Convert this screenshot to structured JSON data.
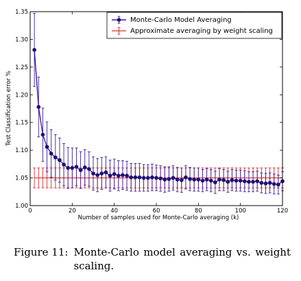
{
  "caption": {
    "prefix": "Figure 11:",
    "text": "Monte-Carlo model averaging vs. weight scaling."
  },
  "colors": {
    "mc_series": "#3a1d9e",
    "mc_marker": "#1b1464",
    "ws_series": "#d62e2e"
  },
  "chart_data": {
    "type": "line",
    "title": "",
    "xlabel": "Number of samples used for Monte-Carlo averaging (k)",
    "ylabel": "Test Classification error %",
    "xlim": [
      0,
      120
    ],
    "ylim": [
      1.0,
      1.35
    ],
    "xticks": [
      0,
      20,
      40,
      60,
      80,
      100,
      120
    ],
    "yticks": [
      1.0,
      1.05,
      1.1,
      1.15,
      1.2,
      1.25,
      1.3,
      1.35
    ],
    "grid": false,
    "legend_position": "top-right",
    "series": [
      {
        "name": "Monte-Carlo Model Averaging",
        "style": "line-with-markers-errorbars",
        "x": [
          2,
          4,
          6,
          8,
          10,
          12,
          14,
          16,
          18,
          20,
          22,
          24,
          26,
          28,
          30,
          32,
          34,
          36,
          38,
          40,
          42,
          44,
          46,
          48,
          50,
          52,
          54,
          56,
          58,
          60,
          62,
          64,
          66,
          68,
          70,
          72,
          74,
          76,
          78,
          80,
          82,
          84,
          86,
          88,
          90,
          92,
          94,
          96,
          98,
          100,
          102,
          104,
          106,
          108,
          110,
          112,
          114,
          116,
          118,
          120
        ],
        "y": [
          1.281,
          1.178,
          1.128,
          1.106,
          1.094,
          1.087,
          1.082,
          1.074,
          1.068,
          1.068,
          1.07,
          1.064,
          1.069,
          1.066,
          1.058,
          1.055,
          1.058,
          1.06,
          1.054,
          1.057,
          1.054,
          1.055,
          1.054,
          1.051,
          1.051,
          1.051,
          1.05,
          1.05,
          1.051,
          1.05,
          1.049,
          1.047,
          1.048,
          1.05,
          1.047,
          1.046,
          1.051,
          1.048,
          1.047,
          1.047,
          1.045,
          1.047,
          1.045,
          1.042,
          1.047,
          1.046,
          1.043,
          1.046,
          1.045,
          1.045,
          1.044,
          1.043,
          1.043,
          1.044,
          1.041,
          1.04,
          1.041,
          1.039,
          1.038,
          1.044
        ],
        "err": [
          0.066,
          0.054,
          0.048,
          0.045,
          0.043,
          0.041,
          0.04,
          0.038,
          0.037,
          0.036,
          0.034,
          0.033,
          0.032,
          0.031,
          0.03,
          0.03,
          0.029,
          0.028,
          0.028,
          0.027,
          0.027,
          0.026,
          0.026,
          0.025,
          0.025,
          0.025,
          0.024,
          0.024,
          0.024,
          0.023,
          0.023,
          0.023,
          0.022,
          0.022,
          0.022,
          0.022,
          0.021,
          0.021,
          0.021,
          0.021,
          0.02,
          0.02,
          0.02,
          0.02,
          0.02,
          0.019,
          0.019,
          0.019,
          0.019,
          0.019,
          0.019,
          0.018,
          0.018,
          0.018,
          0.018,
          0.018,
          0.018,
          0.018,
          0.017,
          0.017
        ]
      },
      {
        "name": "Approximate averaging by weight scaling",
        "style": "constant-line-errorbars",
        "x": [
          2,
          4,
          6,
          8,
          10,
          12,
          14,
          16,
          18,
          20,
          22,
          24,
          26,
          28,
          30,
          32,
          34,
          36,
          38,
          40,
          42,
          44,
          46,
          48,
          50,
          52,
          54,
          56,
          58,
          60,
          62,
          64,
          66,
          68,
          70,
          72,
          74,
          76,
          78,
          80,
          82,
          84,
          86,
          88,
          90,
          92,
          94,
          96,
          98,
          100,
          102,
          104,
          106,
          108,
          110,
          112,
          114,
          116,
          118,
          120
        ],
        "value": 1.05,
        "err": 0.018
      }
    ]
  }
}
